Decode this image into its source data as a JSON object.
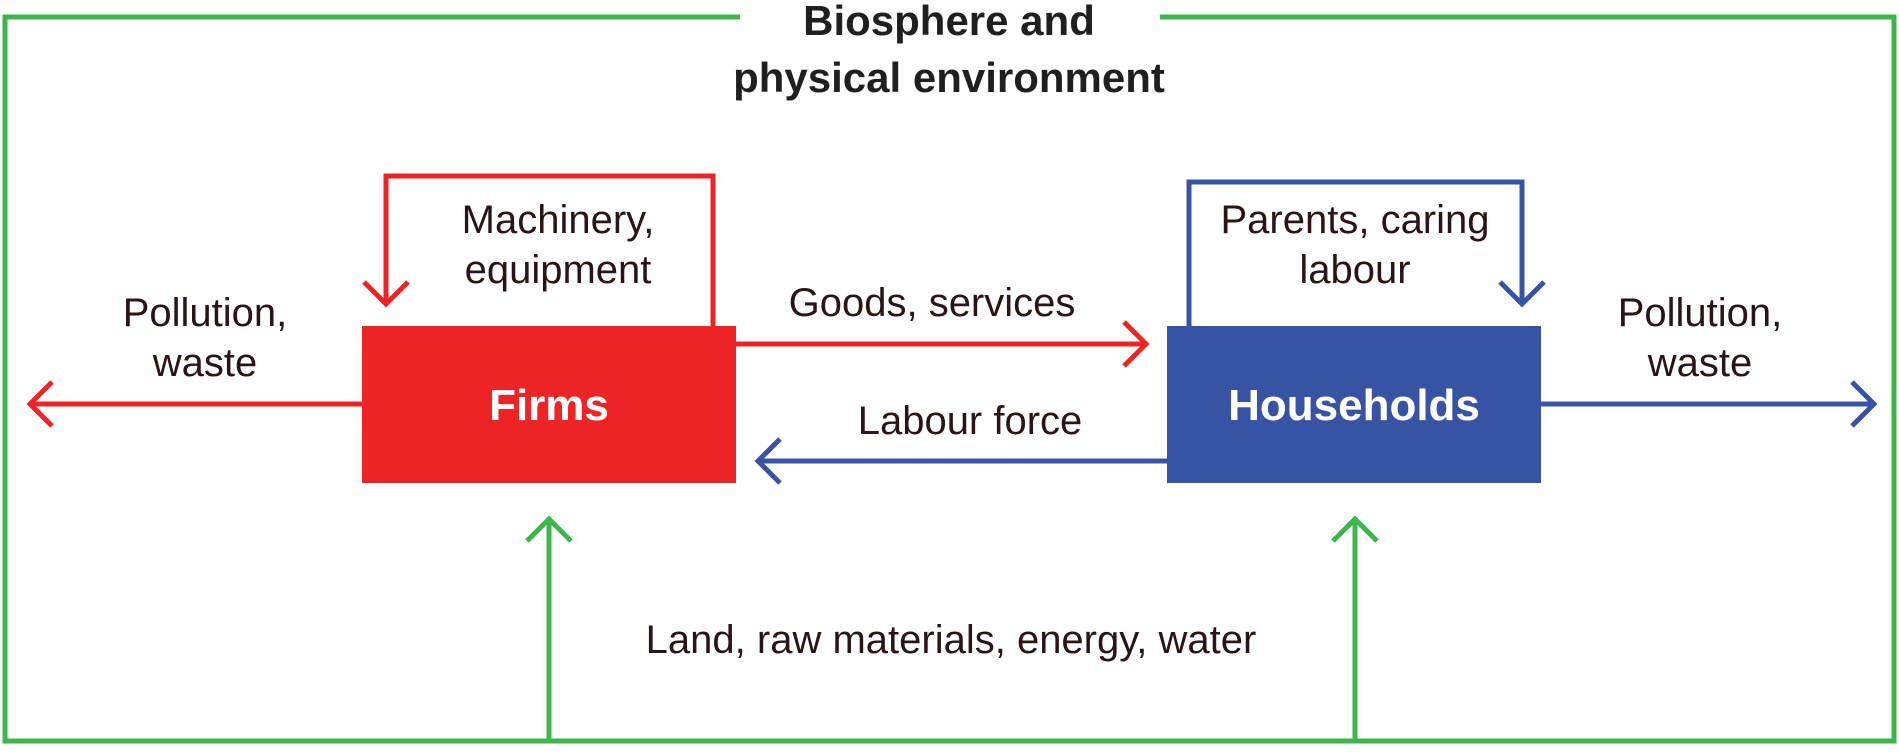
{
  "title_line1": "Biosphere and",
  "title_line2": "physical environment",
  "nodes": {
    "firms": {
      "label": "Firms"
    },
    "households": {
      "label": "Households"
    }
  },
  "flows": {
    "machinery_line1": "Machinery,",
    "machinery_line2": "equipment",
    "parents_line1": "Parents, caring",
    "parents_line2": "labour",
    "goods": "Goods, services",
    "labour": "Labour force",
    "pollution_left_line1": "Pollution,",
    "pollution_left_line2": "waste",
    "pollution_right_line1": "Pollution,",
    "pollution_right_line2": "waste",
    "resources": "Land, raw materials, energy, water"
  },
  "colors": {
    "environment": "#3cb54a",
    "firms": "#ee2326",
    "households": "#3953a4"
  }
}
